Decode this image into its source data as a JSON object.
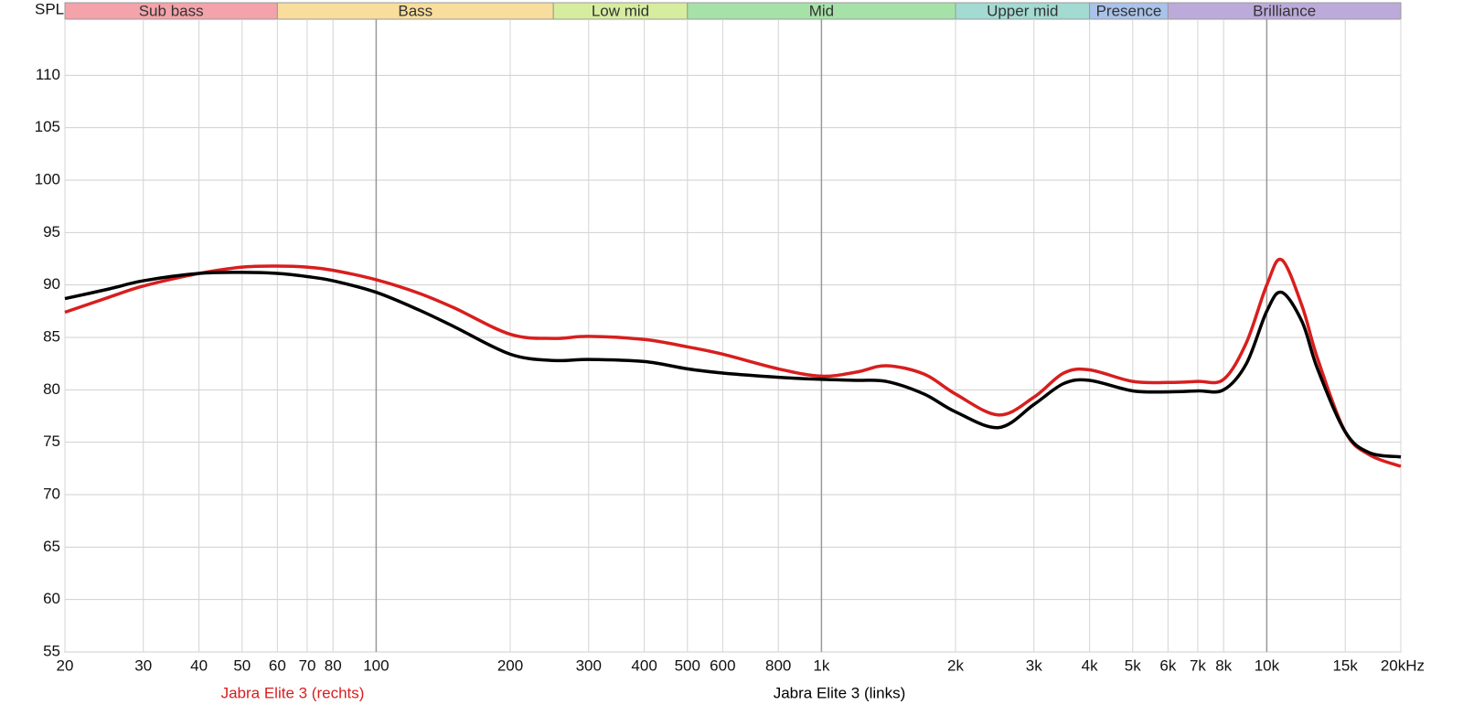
{
  "chart_data": {
    "type": "line",
    "y_label": "SPL",
    "log_x": true,
    "grid": true,
    "bands": [
      {
        "name": "Sub bass",
        "from": 20,
        "to": 60,
        "color": "#f4a3ab"
      },
      {
        "name": "Bass",
        "from": 60,
        "to": 250,
        "color": "#f8dd9c"
      },
      {
        "name": "Low mid",
        "from": 250,
        "to": 500,
        "color": "#d6ed9f"
      },
      {
        "name": "Mid",
        "from": 500,
        "to": 2000,
        "color": "#a6e2a8"
      },
      {
        "name": "Upper mid",
        "from": 2000,
        "to": 4000,
        "color": "#a3dad2"
      },
      {
        "name": "Presence",
        "from": 4000,
        "to": 6000,
        "color": "#aac3ea"
      },
      {
        "name": "Brilliance",
        "from": 6000,
        "to": 20000,
        "color": "#bcaadb"
      }
    ],
    "x": [
      20,
      25,
      30,
      40,
      50,
      60,
      70,
      80,
      100,
      125,
      150,
      200,
      250,
      300,
      400,
      500,
      600,
      800,
      1000,
      1200,
      1400,
      1700,
      2000,
      2500,
      3000,
      3500,
      4000,
      5000,
      6000,
      7000,
      8000,
      9000,
      10000,
      10800,
      12000,
      13000,
      15000,
      17000,
      20000
    ],
    "series": [
      {
        "name": "Jabra Elite 3 (rechts)",
        "color": "#d81e1e",
        "values": [
          87.4,
          88.8,
          89.9,
          91.1,
          91.7,
          91.8,
          91.7,
          91.4,
          90.5,
          89.2,
          87.8,
          85.3,
          84.9,
          85.1,
          84.8,
          84.1,
          83.4,
          82.0,
          81.3,
          81.7,
          82.3,
          81.5,
          79.6,
          77.6,
          79.3,
          81.6,
          81.9,
          80.8,
          80.7,
          80.8,
          81.0,
          84.5,
          90.0,
          92.4,
          88.0,
          83.0,
          76.0,
          73.8,
          72.7
        ]
      },
      {
        "name": "Jabra Elite 3 (links)",
        "color": "#000000",
        "values": [
          88.7,
          89.6,
          90.4,
          91.1,
          91.2,
          91.1,
          90.8,
          90.4,
          89.3,
          87.6,
          86.0,
          83.4,
          82.8,
          82.9,
          82.7,
          82.0,
          81.6,
          81.2,
          81.0,
          80.9,
          80.8,
          79.6,
          77.9,
          76.4,
          78.6,
          80.6,
          80.9,
          79.9,
          79.8,
          79.9,
          80.0,
          82.5,
          87.5,
          89.3,
          86.5,
          82.0,
          76.0,
          74.0,
          73.6
        ]
      }
    ],
    "xlim": [
      20,
      20000
    ],
    "ylim": [
      55,
      115
    ],
    "xticks": [
      20,
      30,
      40,
      50,
      60,
      70,
      80,
      100,
      200,
      300,
      400,
      500,
      600,
      800,
      {
        "value": 1000,
        "label": "1k"
      },
      {
        "value": 2000,
        "label": "2k"
      },
      {
        "value": 3000,
        "label": "3k"
      },
      {
        "value": 4000,
        "label": "4k"
      },
      {
        "value": 5000,
        "label": "5k"
      },
      {
        "value": 6000,
        "label": "6k"
      },
      {
        "value": 7000,
        "label": "7k"
      },
      {
        "value": 8000,
        "label": "8k"
      },
      {
        "value": 10000,
        "label": "10k"
      },
      {
        "value": 15000,
        "label": "15k"
      },
      {
        "value": 20000,
        "label": "20kHz"
      }
    ],
    "yticks": [
      55,
      60,
      65,
      70,
      75,
      80,
      85,
      90,
      95,
      100,
      105,
      110
    ]
  }
}
